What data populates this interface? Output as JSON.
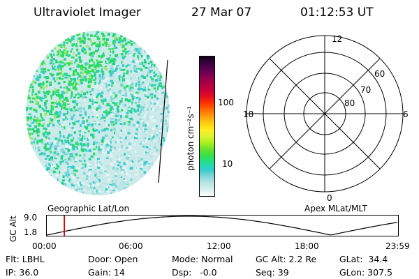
{
  "header": {
    "title": "Ultraviolet Imager",
    "date": "27 Mar 07",
    "time": "01:12:53 UT"
  },
  "colorbar": {
    "unit_label": "photon cm⁻²s⁻¹",
    "ticks": [
      "100",
      "10"
    ],
    "colors": [
      "#ffffff",
      "#d8eeee",
      "#b8e4e4",
      "#7fd6d6",
      "#33cccc",
      "#22dd99",
      "#33e04a",
      "#66e033",
      "#aaf01c",
      "#ddf233",
      "#ffee22",
      "#ffcc10",
      "#ff9a10",
      "#ff6a00",
      "#ff3000",
      "#e01020",
      "#c8003a",
      "#aa0048",
      "#880050",
      "#600050",
      "#3a0040",
      "#140018"
    ]
  },
  "polar_plot": {
    "clock_labels": {
      "top": "12",
      "left": "18",
      "right": "6",
      "bottom": "0"
    },
    "lat_labels": [
      "60",
      "70",
      "80"
    ]
  },
  "timeline": {
    "left_label": "Geographic Lat/Lon",
    "right_label": "Apex MLat/MLT",
    "axis_title": "GC Alt",
    "y_ticks": [
      "9.0",
      "1.8"
    ],
    "x_ticks": [
      "00:00",
      "06:00",
      "12:00",
      "18:00",
      "23:59"
    ],
    "current_time_fraction": 0.05,
    "marker_color": "#dd0000"
  },
  "info": {
    "flt": "Flt: LBHL",
    "ip": "IP: 36.0",
    "door": "Door: Open",
    "gain": "Gain: 14",
    "mode": "Mode: Normal",
    "dsp": "Dsp:   -0.0",
    "gcalt": "GC Alt: 2.2 Re",
    "seq": "Seq: 39",
    "glat": "GLat:  34.4",
    "glon": "GLon: 307.5"
  }
}
